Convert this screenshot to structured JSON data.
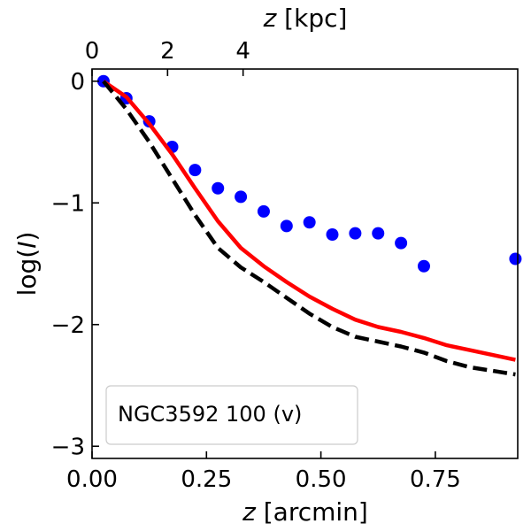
{
  "chart_data": {
    "type": "line",
    "title": "",
    "xlabel_var": "z",
    "xlabel_unit": " [arcmin]",
    "ylabel_pre": "log(",
    "ylabel_var": "I",
    "ylabel_post": ")",
    "top_xlabel_var": "z",
    "top_xlabel_unit": " [kpc]",
    "xlim": [
      0.0,
      0.93
    ],
    "ylim": [
      -3.1,
      0.1
    ],
    "x_ticks": [
      0.0,
      0.25,
      0.5,
      0.75
    ],
    "x_tick_labels": [
      "0.00",
      "0.25",
      "0.50",
      "0.75"
    ],
    "y_ticks": [
      0,
      -1,
      -2,
      -3
    ],
    "y_tick_labels": [
      "0",
      "−1",
      "−2",
      "−3"
    ],
    "top_ticks_arcmin": [
      0.0,
      0.165,
      0.33
    ],
    "top_tick_labels": [
      "0",
      "2",
      "4"
    ],
    "legend_text": "NGC3592 100 (v)",
    "legend_position": "lower-left",
    "series": [
      {
        "name": "data points",
        "style": "scatter",
        "color": "#0000ff",
        "x": [
          0.025,
          0.075,
          0.125,
          0.175,
          0.225,
          0.275,
          0.325,
          0.375,
          0.425,
          0.475,
          0.525,
          0.575,
          0.625,
          0.675,
          0.725,
          0.925
        ],
        "y": [
          0.0,
          -0.14,
          -0.33,
          -0.54,
          -0.73,
          -0.88,
          -0.95,
          -1.07,
          -1.19,
          -1.16,
          -1.26,
          -1.25,
          -1.25,
          -1.33,
          -1.52,
          -1.46
        ]
      },
      {
        "name": "red model",
        "style": "solid",
        "color": "#ff0000",
        "x": [
          0.025,
          0.075,
          0.125,
          0.175,
          0.225,
          0.275,
          0.325,
          0.375,
          0.425,
          0.475,
          0.525,
          0.575,
          0.625,
          0.675,
          0.725,
          0.775,
          0.825,
          0.875,
          0.925
        ],
        "y": [
          0.0,
          -0.13,
          -0.35,
          -0.6,
          -0.88,
          -1.15,
          -1.37,
          -1.52,
          -1.65,
          -1.77,
          -1.87,
          -1.96,
          -2.02,
          -2.06,
          -2.11,
          -2.17,
          -2.21,
          -2.25,
          -2.29
        ]
      },
      {
        "name": "black model",
        "style": "dashed",
        "color": "#000000",
        "x": [
          0.025,
          0.075,
          0.125,
          0.175,
          0.225,
          0.275,
          0.325,
          0.375,
          0.425,
          0.475,
          0.525,
          0.575,
          0.625,
          0.675,
          0.725,
          0.775,
          0.825,
          0.875,
          0.925
        ],
        "y": [
          0.0,
          -0.23,
          -0.5,
          -0.8,
          -1.1,
          -1.37,
          -1.53,
          -1.65,
          -1.78,
          -1.91,
          -2.02,
          -2.1,
          -2.14,
          -2.18,
          -2.23,
          -2.3,
          -2.35,
          -2.38,
          -2.41
        ]
      }
    ]
  }
}
